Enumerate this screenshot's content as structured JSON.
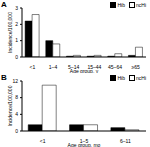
{
  "chart_data": [
    {
      "type": "bar",
      "title": "A",
      "x_label": "Age group, y",
      "y_label": "Incidence/100,000",
      "categories": [
        "<1",
        "1–4",
        "5–14",
        "15–44",
        "45–64",
        "≥65"
      ],
      "series": [
        {
          "name": "Hib",
          "color": "#000000",
          "values": [
            2.2,
            1.0,
            0.05,
            0.05,
            0.05,
            0.1
          ]
        },
        {
          "name": "ncHi",
          "color": "#ffffff",
          "values": [
            2.6,
            0.8,
            0.1,
            0.1,
            0.2,
            0.6
          ]
        }
      ],
      "ylim": [
        0,
        3
      ],
      "yticks": [
        0,
        1,
        2,
        3
      ],
      "legend": "upper right"
    },
    {
      "type": "bar",
      "title": "B",
      "x_label": "Age group, mo",
      "y_label": "Incidence/100,000",
      "categories": [
        "<1",
        "1–5",
        "6–11"
      ],
      "series": [
        {
          "name": "Hib",
          "color": "#000000",
          "values": [
            1.5,
            1.5,
            0.8
          ]
        },
        {
          "name": "ncHi",
          "color": "#ffffff",
          "values": [
            11,
            1.5,
            0.3
          ]
        }
      ],
      "ylim": [
        0,
        12
      ],
      "yticks": [
        0,
        4,
        8,
        12
      ],
      "legend": "upper right"
    }
  ]
}
